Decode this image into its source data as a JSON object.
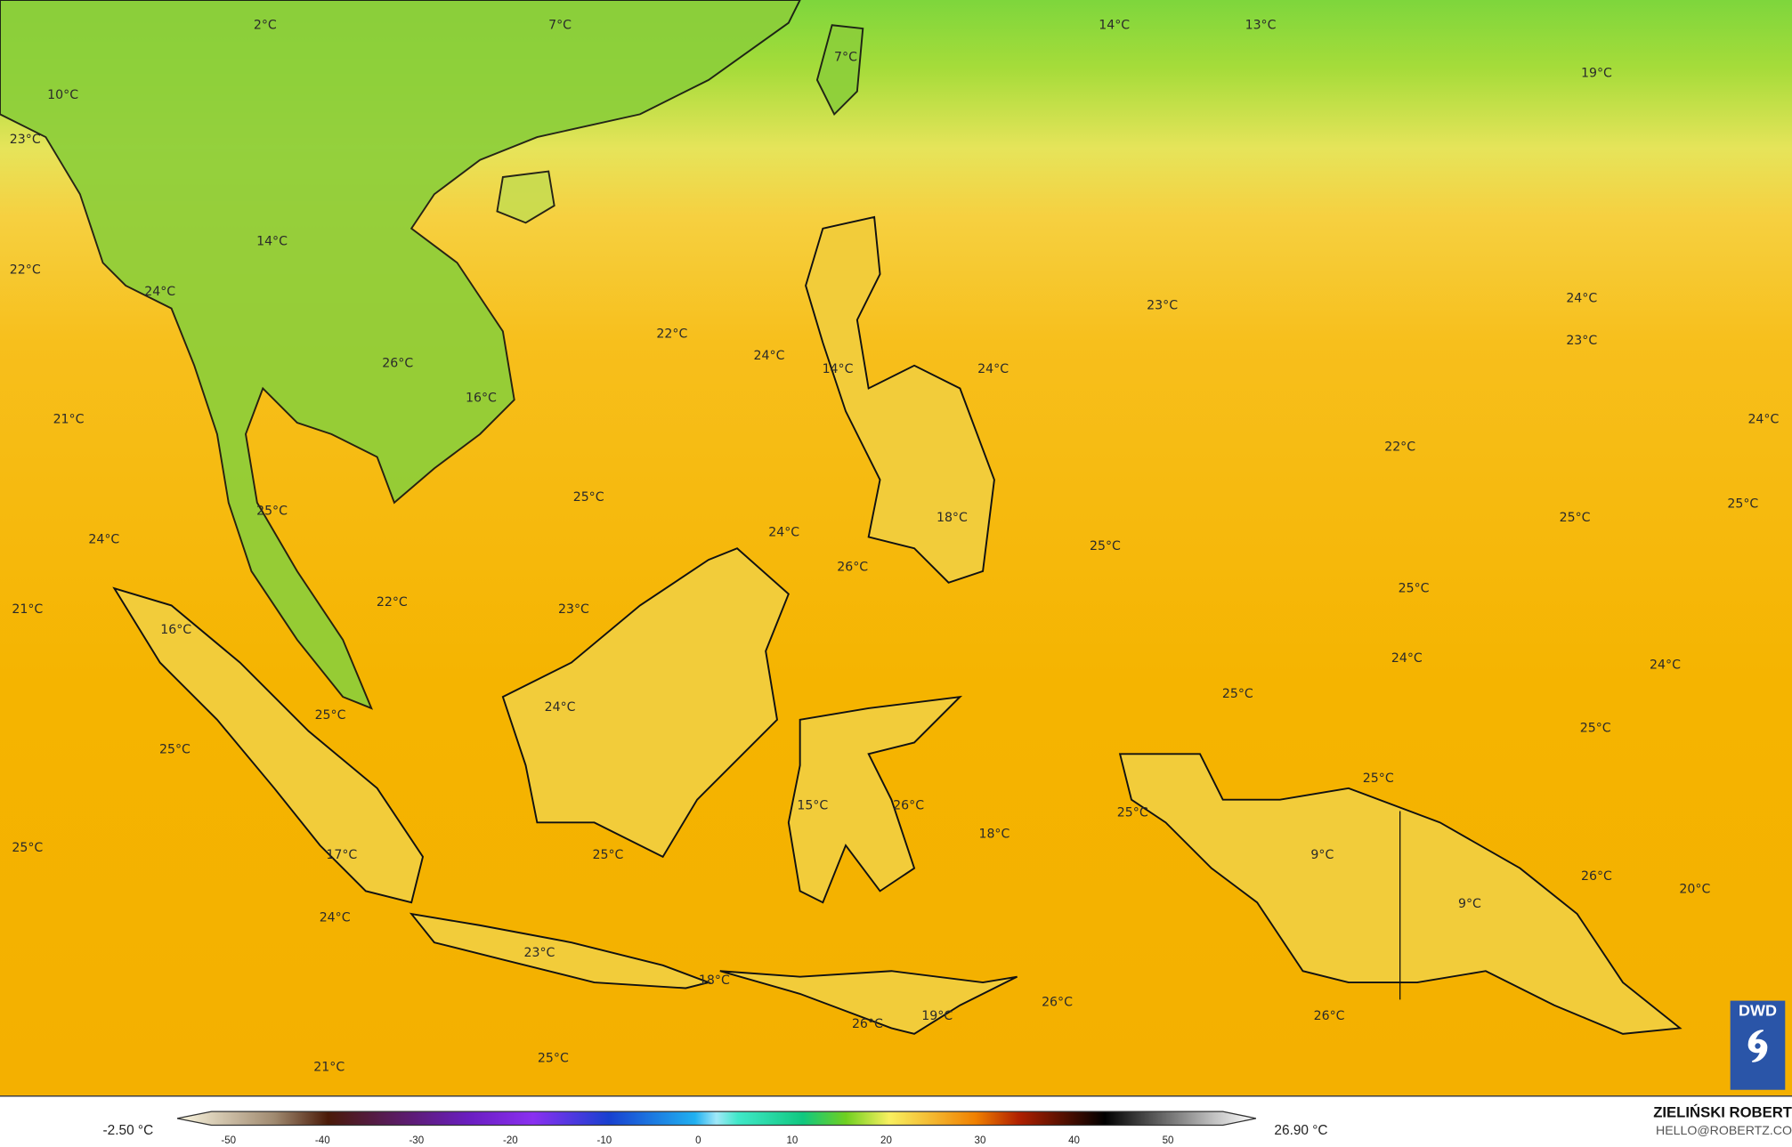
{
  "map": {
    "labels": [
      "2°C",
      "7°C",
      "14°C",
      "13°C",
      "7°C",
      "19°C",
      "10°C",
      "23°C",
      "14°C",
      "22°C",
      "24°C",
      "23°C",
      "24°C",
      "22°C",
      "24°C",
      "23°C",
      "26°C",
      "14°C",
      "24°C",
      "16°C",
      "21°C",
      "24°C",
      "22°C",
      "25°C",
      "25°C",
      "25°C",
      "18°C",
      "25°C",
      "24°C",
      "24°C",
      "25°C",
      "26°C",
      "25°C",
      "22°C",
      "23°C",
      "21°C",
      "16°C",
      "24°C",
      "24°C",
      "25°C",
      "24°C",
      "25°C",
      "25°C",
      "25°C",
      "25°C",
      "15°C",
      "26°C",
      "25°C",
      "18°C",
      "25°C",
      "25°C",
      "17°C",
      "9°C",
      "26°C",
      "20°C",
      "9°C",
      "24°C",
      "23°C",
      "18°C",
      "26°C",
      "26°C",
      "19°C",
      "26°C",
      "25°C",
      "21°C"
    ],
    "colors": {
      "ocean": "#f5b400",
      "north": "#7ed63c",
      "coast": "#000000"
    }
  },
  "legend": {
    "min": "-2.50 °C",
    "max": "26.90 °C",
    "ticks": [
      "-50",
      "-40",
      "-30",
      "-20",
      "-10",
      "0",
      "10",
      "20",
      "30",
      "40",
      "50"
    ],
    "author": "ZIELIŃSKI ROBERT",
    "email": "HELLO@ROBERTZ.CO",
    "logo": "DWD"
  }
}
